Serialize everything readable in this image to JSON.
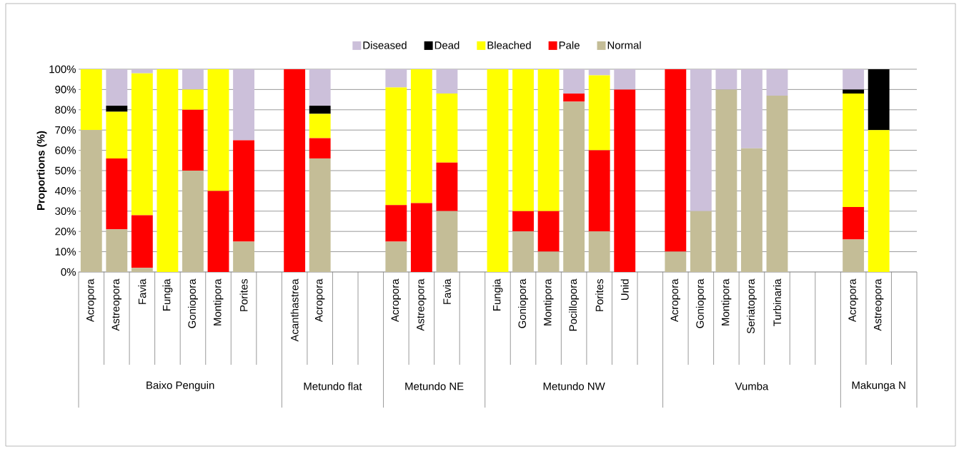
{
  "chart_data": {
    "type": "bar",
    "stacked": true,
    "ylabel": "Proportions (%)",
    "categories": [
      "Acropora",
      "Astreopora",
      "Favia",
      "Fungia",
      "Goniopora",
      "Montipora",
      "Porites",
      null,
      "Acanthastrea",
      "Acropora",
      null,
      null,
      "Acropora",
      "Astreopora",
      "Favia",
      null,
      "Fungia",
      "Goniopora",
      "Montipora",
      "Pocillopora",
      "Porites",
      "Unid",
      null,
      "Acropora",
      "Goniopora",
      "Montipora",
      "Seriatopora",
      "Turbinaria",
      null,
      null,
      "Acropora",
      "Astreopora",
      null
    ],
    "series": [
      {
        "name": "Normal",
        "color": "#c4bd97",
        "values": [
          70,
          21,
          2,
          0,
          50,
          0,
          15,
          null,
          0,
          56,
          null,
          null,
          15,
          0,
          30,
          null,
          0,
          20,
          10,
          84,
          20,
          0,
          null,
          10,
          30,
          90,
          61,
          87,
          null,
          null,
          16,
          0,
          null
        ]
      },
      {
        "name": "Pale",
        "color": "#ff0000",
        "values": [
          0,
          35,
          26,
          0,
          30,
          40,
          50,
          null,
          100,
          10,
          null,
          null,
          18,
          34,
          24,
          null,
          0,
          10,
          20,
          4,
          40,
          90,
          null,
          90,
          0,
          0,
          0,
          0,
          null,
          null,
          16,
          0,
          null
        ]
      },
      {
        "name": "Bleached",
        "color": "#ffff00",
        "values": [
          30,
          23,
          70,
          100,
          10,
          60,
          0,
          null,
          0,
          12,
          null,
          null,
          58,
          66,
          34,
          null,
          100,
          70,
          70,
          0,
          37,
          0,
          null,
          0,
          0,
          0,
          0,
          0,
          null,
          null,
          56,
          70,
          null
        ]
      },
      {
        "name": "Dead",
        "color": "#000000",
        "values": [
          0,
          3,
          0,
          0,
          0,
          0,
          0,
          null,
          0,
          4,
          null,
          null,
          0,
          0,
          0,
          null,
          0,
          0,
          0,
          0,
          0,
          0,
          null,
          0,
          0,
          0,
          0,
          0,
          null,
          null,
          2,
          30,
          null
        ]
      },
      {
        "name": "Diseased",
        "color": "#ccc0da",
        "values": [
          0,
          18,
          2,
          0,
          10,
          0,
          35,
          null,
          0,
          18,
          null,
          null,
          9,
          0,
          12,
          null,
          0,
          0,
          0,
          12,
          3,
          10,
          null,
          0,
          70,
          10,
          39,
          13,
          null,
          null,
          10,
          0,
          null
        ]
      }
    ],
    "ylim": [
      0,
      100
    ],
    "yticks": [
      {
        "value": 0,
        "label": "0%"
      },
      {
        "value": 10,
        "label": "10%"
      },
      {
        "value": 20,
        "label": "20%"
      },
      {
        "value": 30,
        "label": "30%"
      },
      {
        "value": 40,
        "label": "40%"
      },
      {
        "value": 50,
        "label": "50%"
      },
      {
        "value": 60,
        "label": "60%"
      },
      {
        "value": 70,
        "label": "70%"
      },
      {
        "value": 80,
        "label": "80%"
      },
      {
        "value": 90,
        "label": "90%"
      },
      {
        "value": 100,
        "label": "100%"
      }
    ],
    "grid": "y",
    "legend": "top",
    "annotations": [
      "Baixo Penguin",
      "Metundo flat",
      "Metundo NE",
      "Metundo NW",
      "Vumba",
      "Makunga N"
    ]
  }
}
